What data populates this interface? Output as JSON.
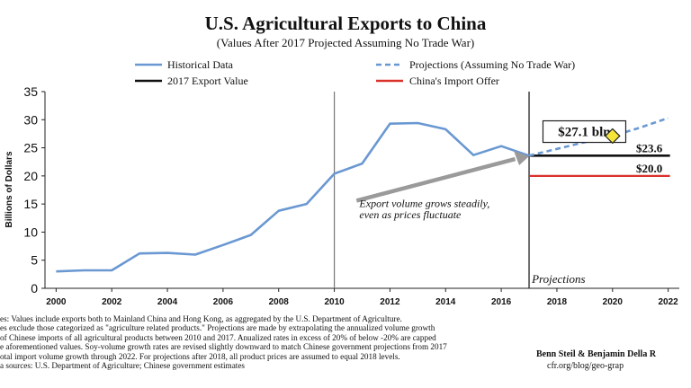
{
  "chart_data": {
    "type": "line",
    "title": "U.S. Agricultural Exports to China",
    "subtitle": "(Values After 2017 Projected Assuming No Trade War)",
    "ylabel": "Billions of Dollars",
    "xlabel": "",
    "ylim": [
      0,
      35
    ],
    "xlim": [
      1999.6,
      2022.4
    ],
    "y_ticks": [
      0,
      5,
      10,
      15,
      20,
      25,
      30,
      35
    ],
    "x_ticks": [
      2000,
      2002,
      2004,
      2006,
      2008,
      2010,
      2012,
      2014,
      2016,
      2018,
      2020,
      2022
    ],
    "grid": false,
    "legend_position": "top",
    "series": [
      {
        "name": "Historical Data",
        "style": "solid",
        "color": "#6a98d2",
        "x": [
          2000,
          2001,
          2002,
          2003,
          2004,
          2005,
          2006,
          2007,
          2008,
          2009,
          2010,
          2011,
          2012,
          2013,
          2014,
          2015,
          2016,
          2017
        ],
        "values": [
          3.0,
          3.2,
          3.2,
          6.2,
          6.3,
          6.0,
          7.7,
          9.5,
          13.8,
          15.0,
          20.4,
          22.2,
          29.3,
          29.4,
          28.3,
          23.7,
          25.3,
          23.6
        ]
      },
      {
        "name": "Projections (Assuming No Trade War)",
        "style": "dashed",
        "color": "#6a98d2",
        "x": [
          2017,
          2018,
          2019,
          2020,
          2021,
          2022
        ],
        "values": [
          23.6,
          24.8,
          26.0,
          27.1,
          28.6,
          30.3
        ]
      },
      {
        "name": "2017 Export Value",
        "style": "solid",
        "color": "#111111",
        "x": [
          2017,
          2022
        ],
        "values": [
          23.6,
          23.6
        ]
      },
      {
        "name": "China's Import Offer",
        "style": "solid",
        "color": "#d8322a",
        "x": [
          2017,
          2022
        ],
        "values": [
          20.0,
          20.0
        ]
      }
    ],
    "vlines": [
      2010,
      2017
    ],
    "marker": {
      "x": 2020,
      "y": 27.1,
      "color": "#f5e53a"
    },
    "annotations": {
      "boxed_value": "$27.1 bln",
      "line_label_export": "$23.6",
      "line_label_offer": "$20.0",
      "arrow_text_1": "Export volume grows steadily,",
      "arrow_text_2": "even as prices fluctuate",
      "projections_label": "Projections"
    }
  },
  "notes": {
    "lines": [
      "es: Values include exports both to Mainland China and Hong Kong, as aggregated by the U.S. Department of Agriculture.",
      "es exclude those categorized as \"agriculture related products.\" Projections are made by extrapolating the annualized volume growth",
      "of Chinese imports of all agricultural products between 2010 and 2017. Anualized rates in excess of 20% of below -20% are capped",
      "e aforementioned values. Soy-volume growth rates are revised slightly downward to match Chinese government projections from 2017",
      "otal import volume growth through 2022. For projections after 2018, all product prices are assumed to equal 2018 levels.",
      "a sources: U.S. Department of Agriculture; Chinese government estimates"
    ]
  },
  "credit": {
    "authors": "Benn Steil & Benjamin Della R",
    "url": "cfr.org/blog/geo-grap"
  }
}
